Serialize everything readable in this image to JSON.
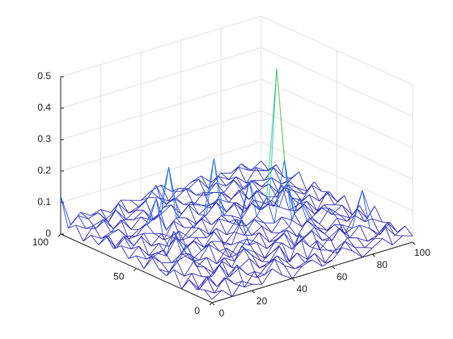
{
  "chart_data": {
    "type": "mesh",
    "x": [
      0,
      5,
      10,
      15,
      20,
      25,
      30,
      35,
      40,
      45,
      50,
      55,
      60,
      65,
      70,
      75,
      80,
      85,
      90,
      95,
      100
    ],
    "y": [
      0,
      5,
      10,
      15,
      20,
      25,
      30,
      35,
      40,
      45,
      50,
      55,
      60,
      65,
      70,
      75,
      80,
      85,
      90,
      95,
      100
    ],
    "z": [
      [
        0.01,
        0.03,
        0.0,
        0.04,
        0.02,
        0.01,
        0.05,
        0.02,
        0.0,
        0.03,
        0.04,
        0.01,
        0.02,
        0.05,
        0.03,
        0.0,
        0.02,
        0.04,
        0.01,
        0.03,
        0.02
      ],
      [
        0.03,
        0.01,
        0.05,
        0.02,
        0.0,
        0.04,
        0.02,
        0.06,
        0.03,
        0.01,
        0.02,
        0.04,
        0.0,
        0.03,
        0.05,
        0.02,
        0.01,
        0.03,
        0.06,
        0.02,
        0.04
      ],
      [
        0.02,
        0.05,
        0.01,
        0.03,
        0.06,
        0.02,
        0.0,
        0.03,
        0.05,
        0.02,
        0.04,
        0.01,
        0.06,
        0.02,
        0.0,
        0.04,
        0.03,
        0.01,
        0.02,
        0.05,
        0.01
      ],
      [
        0.04,
        0.0,
        0.03,
        0.06,
        0.01,
        0.03,
        0.05,
        0.01,
        0.02,
        0.06,
        0.0,
        0.08,
        0.03,
        0.01,
        0.04,
        0.06,
        0.02,
        0.05,
        0.03,
        0.0,
        0.03
      ],
      [
        0.0,
        0.04,
        0.02,
        0.01,
        0.05,
        0.02,
        0.08,
        0.04,
        0.01,
        0.03,
        0.05,
        0.02,
        0.04,
        0.06,
        0.02,
        0.01,
        0.05,
        0.03,
        0.14,
        0.04,
        0.02
      ],
      [
        0.05,
        0.02,
        0.06,
        0.03,
        0.0,
        0.04,
        0.02,
        0.05,
        0.03,
        0.0,
        0.04,
        0.06,
        0.01,
        0.03,
        0.05,
        0.02,
        0.04,
        0.0,
        0.05,
        0.02,
        0.06
      ],
      [
        0.02,
        0.06,
        0.1,
        0.02,
        0.04,
        0.01,
        0.05,
        0.02,
        0.06,
        0.04,
        0.01,
        0.03,
        0.05,
        0.02,
        0.06,
        0.03,
        0.01,
        0.04,
        0.02,
        0.05,
        0.01
      ],
      [
        0.03,
        0.01,
        0.04,
        0.05,
        0.02,
        0.06,
        0.03,
        0.0,
        0.04,
        0.02,
        0.05,
        0.01,
        0.03,
        0.04,
        0.12,
        0.05,
        0.02,
        0.06,
        0.03,
        0.01,
        0.04
      ],
      [
        0.06,
        0.03,
        0.02,
        0.04,
        0.01,
        0.03,
        0.05,
        0.04,
        0.02,
        0.09,
        0.03,
        0.05,
        0.02,
        0.06,
        0.04,
        0.01,
        0.03,
        0.05,
        0.02,
        0.04,
        0.0
      ],
      [
        0.01,
        0.04,
        0.05,
        0.1,
        0.03,
        0.05,
        0.02,
        0.06,
        0.01,
        0.04,
        0.02,
        0.06,
        0.04,
        0.03,
        0.22,
        0.04,
        0.06,
        0.02,
        0.04,
        0.03,
        0.05
      ],
      [
        0.04,
        0.02,
        0.03,
        0.01,
        0.06,
        0.02,
        0.04,
        0.03,
        0.05,
        0.02,
        0.06,
        0.03,
        0.05,
        0.1,
        0.5,
        0.12,
        0.03,
        0.05,
        0.01,
        0.06,
        0.02
      ],
      [
        0.02,
        0.05,
        0.01,
        0.04,
        0.02,
        0.06,
        0.03,
        0.05,
        0.02,
        0.06,
        0.04,
        0.02,
        0.15,
        0.05,
        0.06,
        0.04,
        0.02,
        0.03,
        0.05,
        0.02,
        0.04
      ],
      [
        0.05,
        0.03,
        0.06,
        0.02,
        0.05,
        0.03,
        0.01,
        0.04,
        0.06,
        0.03,
        0.05,
        0.04,
        0.02,
        0.06,
        0.03,
        0.05,
        0.09,
        0.04,
        0.02,
        0.06,
        0.03
      ],
      [
        0.03,
        0.06,
        0.02,
        0.05,
        0.04,
        0.01,
        0.06,
        0.03,
        0.02,
        0.05,
        0.22,
        0.03,
        0.06,
        0.02,
        0.05,
        0.03,
        0.01,
        0.06,
        0.04,
        0.02,
        0.05
      ],
      [
        0.06,
        0.01,
        0.04,
        0.03,
        0.06,
        0.13,
        0.02,
        0.05,
        0.04,
        0.01,
        0.03,
        0.06,
        0.02,
        0.04,
        0.01,
        0.06,
        0.03,
        0.02,
        0.05,
        0.03,
        0.01
      ],
      [
        0.02,
        0.04,
        0.05,
        0.01,
        0.03,
        0.04,
        0.06,
        0.2,
        0.03,
        0.06,
        0.02,
        0.04,
        0.05,
        0.03,
        0.06,
        0.02,
        0.04,
        0.05,
        0.01,
        0.04,
        0.06
      ],
      [
        0.04,
        0.02,
        0.03,
        0.06,
        0.02,
        0.05,
        0.03,
        0.04,
        0.06,
        0.02,
        0.05,
        0.03,
        0.01,
        0.05,
        0.02,
        0.04,
        0.06,
        0.03,
        0.05,
        0.02,
        0.03
      ],
      [
        0.01,
        0.05,
        0.06,
        0.02,
        0.04,
        0.03,
        0.05,
        0.01,
        0.04,
        0.06,
        0.03,
        0.02,
        0.05,
        0.04,
        0.03,
        0.06,
        0.02,
        0.04,
        0.03,
        0.06,
        0.02
      ],
      [
        0.05,
        0.03,
        0.02,
        0.04,
        0.06,
        0.02,
        0.04,
        0.06,
        0.1,
        0.03,
        0.04,
        0.06,
        0.03,
        0.02,
        0.05,
        0.03,
        0.05,
        0.02,
        0.06,
        0.04,
        0.05
      ],
      [
        0.03,
        0.06,
        0.04,
        0.05,
        0.01,
        0.06,
        0.02,
        0.03,
        0.05,
        0.04,
        0.02,
        0.05,
        0.04,
        0.06,
        0.02,
        0.05,
        0.03,
        0.06,
        0.04,
        0.03,
        0.02
      ],
      [
        0.12,
        0.02,
        0.05,
        0.03,
        0.04,
        0.02,
        0.05,
        0.04,
        0.03,
        0.05,
        0.06,
        0.03,
        0.02,
        0.04,
        0.05,
        0.02,
        0.04,
        0.03,
        0.05,
        0.02,
        0.04
      ]
    ],
    "xlim": [
      0,
      100
    ],
    "ylim": [
      0,
      100
    ],
    "zlim": [
      0,
      0.5
    ],
    "xticks": [
      0,
      20,
      40,
      60,
      80,
      100
    ],
    "yticks": [
      0,
      50,
      100
    ],
    "zticks": [
      0,
      0.1,
      0.2,
      0.3,
      0.4,
      0.5
    ],
    "grid": true,
    "colormap": [
      "#3e26a8",
      "#2f5ee6",
      "#2aa6d8",
      "#3cc88e",
      "#b8c52f",
      "#f9fb15"
    ]
  }
}
